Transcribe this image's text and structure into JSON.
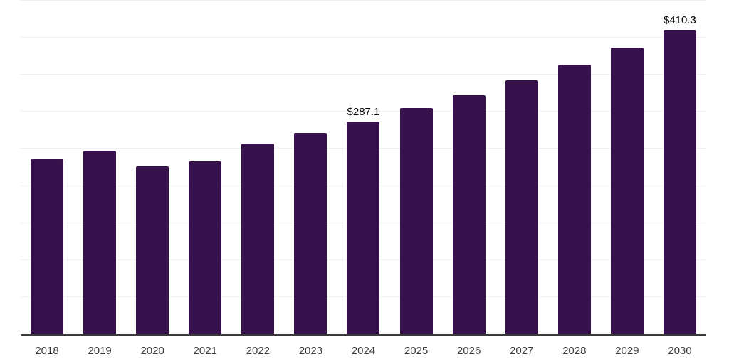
{
  "chart_data": {
    "type": "bar",
    "title": "",
    "xlabel": "",
    "ylabel": "",
    "categories": [
      "2018",
      "2019",
      "2020",
      "2021",
      "2022",
      "2023",
      "2024",
      "2025",
      "2026",
      "2027",
      "2028",
      "2029",
      "2030"
    ],
    "values": [
      236,
      248,
      226,
      233,
      257,
      272,
      287.1,
      305,
      322,
      343,
      364,
      387,
      410.3
    ],
    "data_labels": {
      "2024": "$287.1",
      "2030": "$410.3"
    },
    "ylim": [
      0,
      450
    ],
    "grid_step": 50,
    "grid_on": true,
    "legend": "none",
    "colors": {
      "bar": "#36114B",
      "gridline": "#f0f0f1",
      "axis_line": "#3a3a3a",
      "value_label": "#000000",
      "tick_label": "#3d3d3d",
      "background": "#ffffff"
    }
  }
}
